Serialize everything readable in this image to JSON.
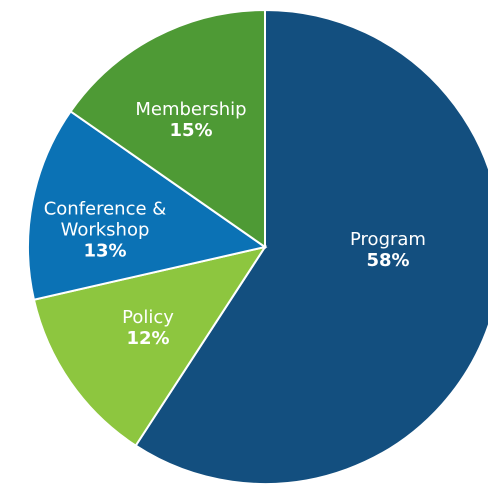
{
  "chart_data": {
    "type": "pie",
    "categories": [
      "Program",
      "Policy",
      "Conference & Workshop",
      "Membership"
    ],
    "values": [
      58,
      12,
      13,
      15
    ],
    "value_labels": [
      "58%",
      "12%",
      "13%",
      "15%"
    ],
    "colors": [
      "#134f7f",
      "#8dc63f",
      "#0b72b5",
      "#4e9a35"
    ]
  }
}
